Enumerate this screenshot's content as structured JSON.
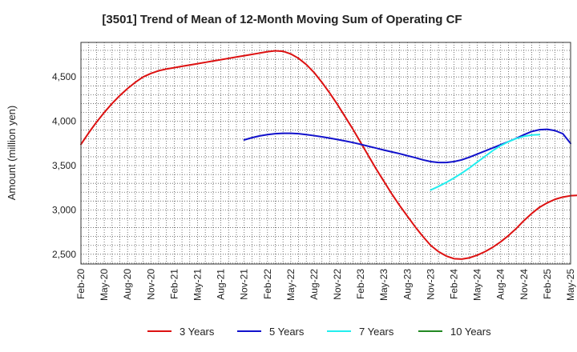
{
  "chart_data": {
    "type": "line",
    "title": "[3501]  Trend of Mean of 12-Month Moving Sum of Operating CF",
    "xlabel": "",
    "ylabel": "Amount (million yen)",
    "ylim": [
      2390,
      4890
    ],
    "yticks": [
      2500,
      3000,
      3500,
      4000,
      4500
    ],
    "ytick_labels": [
      "2,500",
      "3,000",
      "3,500",
      "4,000",
      "4,500"
    ],
    "x_start": "Feb-20",
    "x_end": "May-25",
    "x_tick_labels": [
      "Feb-20",
      "May-20",
      "Aug-20",
      "Nov-20",
      "Feb-21",
      "May-21",
      "Aug-21",
      "Nov-21",
      "Feb-22",
      "May-22",
      "Aug-22",
      "Nov-22",
      "Feb-23",
      "May-23",
      "Aug-23",
      "Nov-23",
      "Feb-24",
      "May-24",
      "Aug-24",
      "Nov-24",
      "Feb-25",
      "May-25"
    ],
    "grid": true,
    "legend_position": "bottom",
    "series": [
      {
        "name": "3 Years",
        "color": "#dd1111",
        "start_index": 0,
        "values": [
          3740,
          3870,
          3990,
          4100,
          4200,
          4290,
          4370,
          4440,
          4500,
          4540,
          4570,
          4590,
          4605,
          4620,
          4635,
          4650,
          4665,
          4680,
          4695,
          4710,
          4725,
          4740,
          4755,
          4770,
          4785,
          4795,
          4790,
          4760,
          4710,
          4640,
          4550,
          4440,
          4320,
          4190,
          4050,
          3910,
          3760,
          3610,
          3460,
          3320,
          3180,
          3050,
          2930,
          2810,
          2700,
          2600,
          2530,
          2480,
          2450,
          2445,
          2460,
          2490,
          2530,
          2580,
          2640,
          2710,
          2790,
          2880,
          2960,
          3030,
          3080,
          3120,
          3145,
          3160,
          3165
        ]
      },
      {
        "name": "5 Years",
        "color": "#1111cc",
        "start_index": 21,
        "values": [
          3790,
          3815,
          3835,
          3850,
          3860,
          3865,
          3865,
          3860,
          3850,
          3838,
          3825,
          3810,
          3795,
          3778,
          3760,
          3740,
          3718,
          3697,
          3675,
          3655,
          3635,
          3612,
          3590,
          3565,
          3545,
          3535,
          3535,
          3545,
          3565,
          3595,
          3630,
          3665,
          3700,
          3735,
          3770,
          3808,
          3848,
          3885,
          3905,
          3910,
          3895,
          3860,
          3750
        ]
      },
      {
        "name": "7 Years",
        "color": "#22eeee",
        "start_index": 45,
        "values": [
          3225,
          3265,
          3310,
          3360,
          3415,
          3475,
          3540,
          3605,
          3670,
          3725,
          3770,
          3805,
          3830,
          3845,
          3850
        ]
      },
      {
        "name": "10 Years",
        "color": "#228822",
        "start_index": 0,
        "values": []
      }
    ]
  }
}
